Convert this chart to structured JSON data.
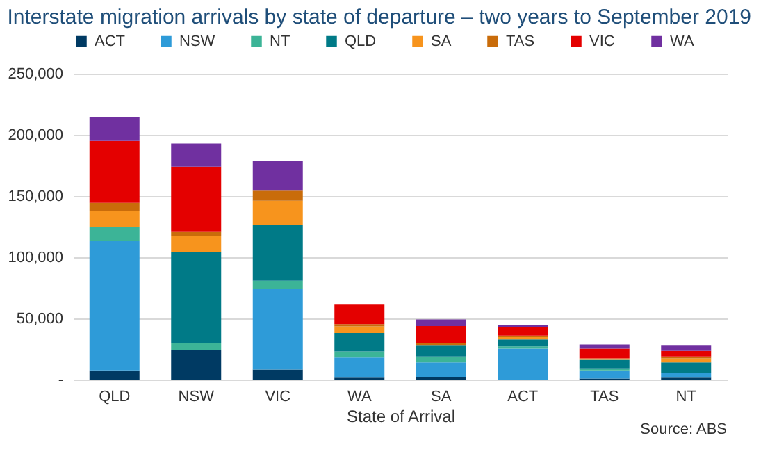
{
  "chart_data": {
    "type": "bar",
    "stacked": true,
    "title": "Interstate migration arrivals by state of departure – two years to September 2019",
    "xlabel": "State of Arrival",
    "categories": [
      "QLD",
      "NSW",
      "VIC",
      "WA",
      "SA",
      "ACT",
      "TAS",
      "NT"
    ],
    "series": [
      {
        "name": "ACT",
        "color": "#003a63",
        "values": [
          7500,
          23800,
          8300,
          1500,
          1900,
          0,
          800,
          1500
        ]
      },
      {
        "name": "NSW",
        "color": "#2e9bd8",
        "values": [
          106000,
          0,
          65700,
          16600,
          12100,
          25300,
          6700,
          4200
        ]
      },
      {
        "name": "NT",
        "color": "#3cb497",
        "values": [
          11500,
          6000,
          6800,
          4900,
          4900,
          1900,
          1200,
          0
        ]
      },
      {
        "name": "QLD",
        "color": "#007a87",
        "values": [
          0,
          74800,
          45300,
          15100,
          9400,
          5600,
          7500,
          8300
        ]
      },
      {
        "name": "SA",
        "color": "#f7941d",
        "values": [
          13000,
          12400,
          20000,
          5300,
          0,
          1900,
          1200,
          3400
        ]
      },
      {
        "name": "TAS",
        "color": "#c96c0a",
        "values": [
          6500,
          4200,
          8300,
          1900,
          1500,
          1200,
          0,
          1500
        ]
      },
      {
        "name": "VIC",
        "color": "#e40000",
        "values": [
          50500,
          52800,
          0,
          15900,
          14000,
          7100,
          7900,
          4500
        ]
      },
      {
        "name": "WA",
        "color": "#7030a0",
        "values": [
          19200,
          18900,
          24500,
          0,
          5300,
          1500,
          3400,
          4900
        ]
      }
    ],
    "ylim": [
      0,
      250000
    ],
    "yticks": [
      {
        "value": 0,
        "label": "-"
      },
      {
        "value": 50000,
        "label": "50,000"
      },
      {
        "value": 100000,
        "label": "100,000"
      },
      {
        "value": 150000,
        "label": "150,000"
      },
      {
        "value": 200000,
        "label": "200,000"
      },
      {
        "value": 250000,
        "label": "250,000"
      }
    ],
    "grid": "y",
    "legend": "top",
    "annotations": [
      "Source: ABS"
    ]
  }
}
